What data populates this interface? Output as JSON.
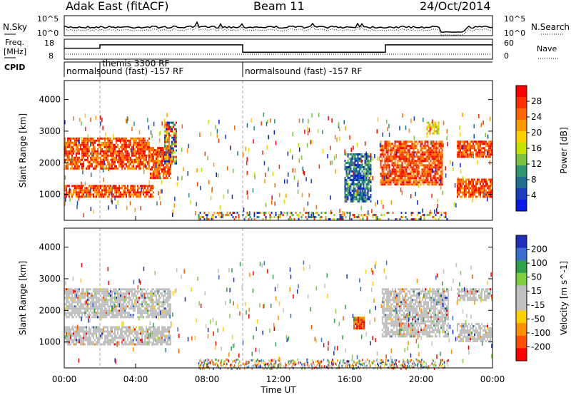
{
  "header": {
    "title": "Adak East (fitACF)",
    "beam": "Beam 11",
    "date": "24/Oct/2014"
  },
  "top_panels": {
    "nsky_label": "N.Sky",
    "nsky_tick_hi": "10^5",
    "nsky_tick_lo": "10^0",
    "nsearch_label": "N.Search",
    "nsearch_tick_hi": "10^5",
    "nsearch_tick_lo": "10^0",
    "freq_label": "Freq.",
    "freq_unit": "[MHz]",
    "freq_ticks": [
      "18",
      "8"
    ],
    "nave_label": "Nave",
    "nave_ticks": [
      "60",
      "0"
    ],
    "cpid_label": "CPID",
    "cpid_segments": [
      {
        "label": "normalsound (fast) -157 RF",
        "start_h": 0.0
      },
      {
        "label": "themis 3300 RF",
        "start_h": 2.0
      },
      {
        "label": "normalsound (fast) -157 RF",
        "start_h": 10.0
      }
    ],
    "freq_steps": [
      {
        "from_h": 0.0,
        "to_h": 2.0,
        "level": 0.55
      },
      {
        "from_h": 2.0,
        "to_h": 10.0,
        "level": 0.72
      },
      {
        "from_h": 10.0,
        "to_h": 18.0,
        "level": 0.35
      },
      {
        "from_h": 18.0,
        "to_h": 24.0,
        "level": 0.72
      }
    ]
  },
  "axes": {
    "xlabel": "Time UT",
    "ylabel": "Slant Range [km]",
    "x_ticks": [
      "00:00",
      "04:00",
      "08:00",
      "12:00",
      "16:00",
      "20:00",
      "00:00"
    ],
    "y_ticks": [
      "1000",
      "2000",
      "3000",
      "4000"
    ]
  },
  "power_bar": {
    "label": "Power [dB]",
    "ticks": [
      "28",
      "24",
      "20",
      "16",
      "12",
      "8",
      "4"
    ],
    "colors": [
      "#ff0000",
      "#ff3000",
      "#ff6800",
      "#ff9b00",
      "#ffd000",
      "#c8e000",
      "#7ac23f",
      "#2f9770",
      "#1e6f90",
      "#193fba",
      "#0a1ae6"
    ]
  },
  "velocity_bar": {
    "label": "Velocity [m s^-1]",
    "ticks": [
      "200",
      "100",
      "50",
      "15",
      "-15",
      "-50",
      "-100",
      "-200"
    ],
    "colors": [
      "#1f2fb8",
      "#3a6fd0",
      "#2ea04a",
      "#7fd040",
      "#c0c0c0",
      "#c0c0c0",
      "#ffd000",
      "#ff9000",
      "#ff5000",
      "#ff0000"
    ]
  },
  "chart_data": {
    "type": "heatmap",
    "x_range_hours": [
      0,
      24
    ],
    "y_range_km": [
      180,
      4600
    ],
    "power_regions": [
      {
        "t0": 0.0,
        "t1": 5.0,
        "r0": 900,
        "r1": 1300,
        "level": "high"
      },
      {
        "t0": 0.0,
        "t1": 4.8,
        "r0": 1800,
        "r1": 2800,
        "level": "high"
      },
      {
        "t0": 4.8,
        "t1": 6.0,
        "r0": 1500,
        "r1": 2500,
        "level": "high"
      },
      {
        "t0": 5.6,
        "t1": 6.3,
        "r0": 2000,
        "r1": 3300,
        "level": "mixed"
      },
      {
        "t0": 15.7,
        "t1": 17.2,
        "r0": 800,
        "r1": 2300,
        "level": "low"
      },
      {
        "t0": 17.7,
        "t1": 21.2,
        "r0": 1300,
        "r1": 2700,
        "level": "high"
      },
      {
        "t0": 20.3,
        "t1": 21.0,
        "r0": 2900,
        "r1": 3300,
        "level": "mid"
      },
      {
        "t0": 22.0,
        "t1": 24.0,
        "r0": 2200,
        "r1": 2700,
        "level": "high"
      },
      {
        "t0": 22.0,
        "t1": 24.0,
        "r0": 900,
        "r1": 1500,
        "level": "high"
      },
      {
        "t0": 7.5,
        "t1": 21.5,
        "r0": 180,
        "r1": 450,
        "level": "noise"
      }
    ],
    "velocity_regions": [
      {
        "t0": 0.0,
        "t1": 6.0,
        "r0": 900,
        "r1": 1500,
        "class": "low"
      },
      {
        "t0": 0.0,
        "t1": 6.0,
        "r0": 1800,
        "r1": 2700,
        "class": "low"
      },
      {
        "t0": 16.2,
        "t1": 16.8,
        "r0": 1400,
        "r1": 1800,
        "class": "neg_fast"
      },
      {
        "t0": 17.8,
        "t1": 21.5,
        "r0": 1200,
        "r1": 2700,
        "class": "low"
      },
      {
        "t0": 22.0,
        "t1": 24.0,
        "r0": 1000,
        "r1": 1600,
        "class": "low"
      },
      {
        "t0": 22.0,
        "t1": 24.0,
        "r0": 2300,
        "r1": 2700,
        "class": "low"
      }
    ]
  }
}
